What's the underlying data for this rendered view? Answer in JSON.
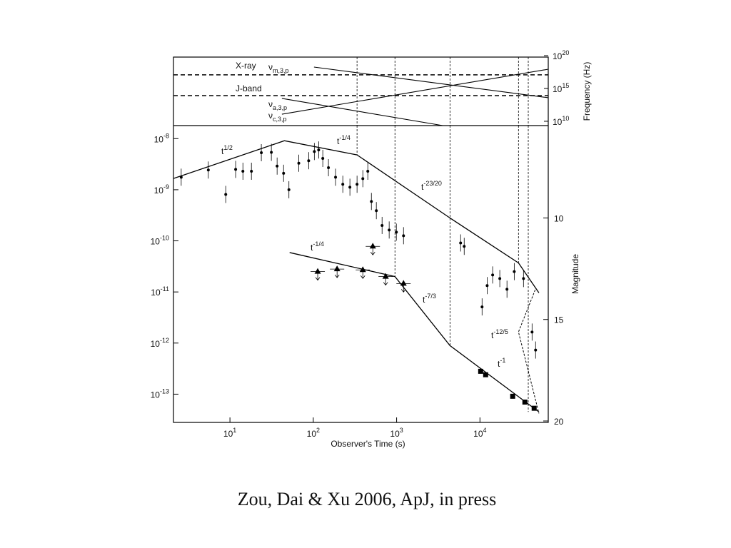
{
  "chart_data": [
    {
      "type": "line",
      "ylabel": "Frequency (Hz)",
      "log_x": true,
      "log_y": true,
      "xlim": [
        2.1,
        66000
      ],
      "ylim": [
        2200000000,
        60000000000000000000
      ],
      "yticks": [
        {
          "value": 10000000000,
          "label": "10",
          "exponent": "10"
        },
        {
          "value": 1000000000000000,
          "label": "10",
          "exponent": "15"
        },
        {
          "value": 100000000000000000000,
          "label": "10",
          "exponent": "20"
        }
      ],
      "hlines": [
        {
          "label": "X-ray",
          "value": 120000000000000000
        },
        {
          "label": "J-band",
          "value": 80000000000000
        }
      ],
      "series": [
        {
          "name": "ν",
          "subscript": "m,3,p",
          "x": [
            102,
            66000
          ],
          "values": [
            1800000000000000000,
            39000000000000
          ]
        },
        {
          "name": "ν",
          "subscript": "a,3,p",
          "x": [
            42,
            3580
          ],
          "values": [
            30000000000000,
            2200000000
          ]
        },
        {
          "name": "ν",
          "subscript": "c,3,p",
          "x": [
            42,
            66000
          ],
          "values": [
            120000000000,
            850000000000000000
          ]
        }
      ],
      "vlines": [
        335,
        955,
        4370,
        29000,
        38000
      ]
    },
    {
      "type": "scatter",
      "xlabel": "Observer's Time (s)",
      "y2label": "Magnitude",
      "log_x": true,
      "log_y": true,
      "xlim": [
        2.1,
        66000
      ],
      "ylim": [
        2.8e-14,
        1.8e-08
      ],
      "y2lim": [
        20.07,
        5.45
      ],
      "xticks": [
        {
          "value": 10,
          "label": "10",
          "exponent": "1"
        },
        {
          "value": 100,
          "label": "10",
          "exponent": "2"
        },
        {
          "value": 1000,
          "label": "10",
          "exponent": "3"
        },
        {
          "value": 10000,
          "label": "10",
          "exponent": "4"
        }
      ],
      "yticks": [
        {
          "value": 1e-08,
          "label": "10",
          "exponent": "-8"
        },
        {
          "value": 1e-09,
          "label": "10",
          "exponent": "-9"
        },
        {
          "value": 1e-10,
          "label": "10",
          "exponent": "-10"
        },
        {
          "value": 1e-11,
          "label": "10",
          "exponent": "-11"
        },
        {
          "value": 1e-12,
          "label": "10",
          "exponent": "-12"
        },
        {
          "value": 1e-13,
          "label": "10",
          "exponent": "-13"
        }
      ],
      "y2ticks": [
        10,
        15,
        20
      ],
      "series": [
        {
          "marker": "circle",
          "x": [
            2.6,
            5.5,
            8.9,
            11.7,
            14.3,
            18.1,
            23.8,
            31.4,
            36.8,
            44,
            51,
            67,
            88,
            103,
            116,
            130,
            152,
            185,
            226,
            275,
            335,
            393,
            451,
            498,
            571,
            669,
            814,
            993,
            1210,
            5860,
            6470,
            10600,
            12200,
            14200,
            17300,
            21100,
            25800,
            33300,
            42200,
            46500
          ],
          "values": [
            1.76e-09,
            2.43e-09,
            8.1e-10,
            2.5e-09,
            2.3e-09,
            2.3e-09,
            5.3e-09,
            5.4e-09,
            2.9e-09,
            2.1e-09,
            1e-09,
            3.3e-09,
            3.7e-09,
            5.6e-09,
            6e-09,
            4.1e-09,
            2.7e-09,
            1.76e-09,
            1.28e-09,
            1.12e-09,
            1.28e-09,
            1.65e-09,
            2.3e-09,
            5.9e-10,
            3.9e-10,
            2e-10,
            1.63e-10,
            1.48e-10,
            1.26e-10,
            9.1e-11,
            7.8e-11,
            5.1e-12,
            1.33e-11,
            2.15e-11,
            1.83e-11,
            1.13e-11,
            2.5e-11,
            1.83e-11,
            1.64e-12,
            7.3e-13
          ]
        },
        {
          "marker": "triangle",
          "x": [
            113,
            193,
            393,
            738,
            1210,
            518
          ],
          "values": [
            2.5e-11,
            2.8e-11,
            2.7e-11,
            2e-11,
            1.46e-11,
            7.8e-11
          ]
        },
        {
          "marker": "square",
          "x": [
            10200,
            11700,
            24700,
            34600,
            44700
          ],
          "values": [
            2.8e-13,
            2.4e-13,
            9.1e-14,
            7e-14,
            5.3e-14
          ]
        }
      ],
      "lines": [
        {
          "x": [
            2.1,
            45,
            335,
            4370,
            29000,
            51000
          ],
          "values": [
            1.66e-09,
            9.1e-09,
            4.8e-09,
            2.8e-10,
            3.7e-11,
            9.6e-12
          ]
        },
        {
          "x": [
            52,
            955,
            4370,
            51000
          ],
          "values": [
            5.9e-11,
            2e-11,
            8.9e-13,
            4.5e-14
          ]
        },
        {
          "dashed": true,
          "x": [
            46000,
            29000,
            51000
          ],
          "values": [
            1.1e-11,
            1.65e-12,
            4.2e-14
          ]
        }
      ],
      "vlines": [
        {
          "x": 335,
          "to": 4.8e-09
        },
        {
          "x": 955,
          "to": 2e-11
        },
        {
          "x": 4370,
          "to": 8.9e-13
        },
        {
          "x": 29000,
          "to": 3.7e-11
        },
        {
          "x": 38000,
          "to": 4.5e-14
        }
      ],
      "annotations": [
        {
          "base": "t",
          "exponent": "1/2"
        },
        {
          "base": "t",
          "exponent": "-1/4"
        },
        {
          "base": "t",
          "exponent": "-23/20"
        },
        {
          "base": "t",
          "exponent": "-1/4"
        },
        {
          "base": "t",
          "exponent": "-7/3"
        },
        {
          "base": "t",
          "exponent": "-12/5"
        },
        {
          "base": "t",
          "exponent": "-1"
        }
      ]
    }
  ],
  "caption": "Zou, Dai & Xu 2006, ApJ, in press"
}
